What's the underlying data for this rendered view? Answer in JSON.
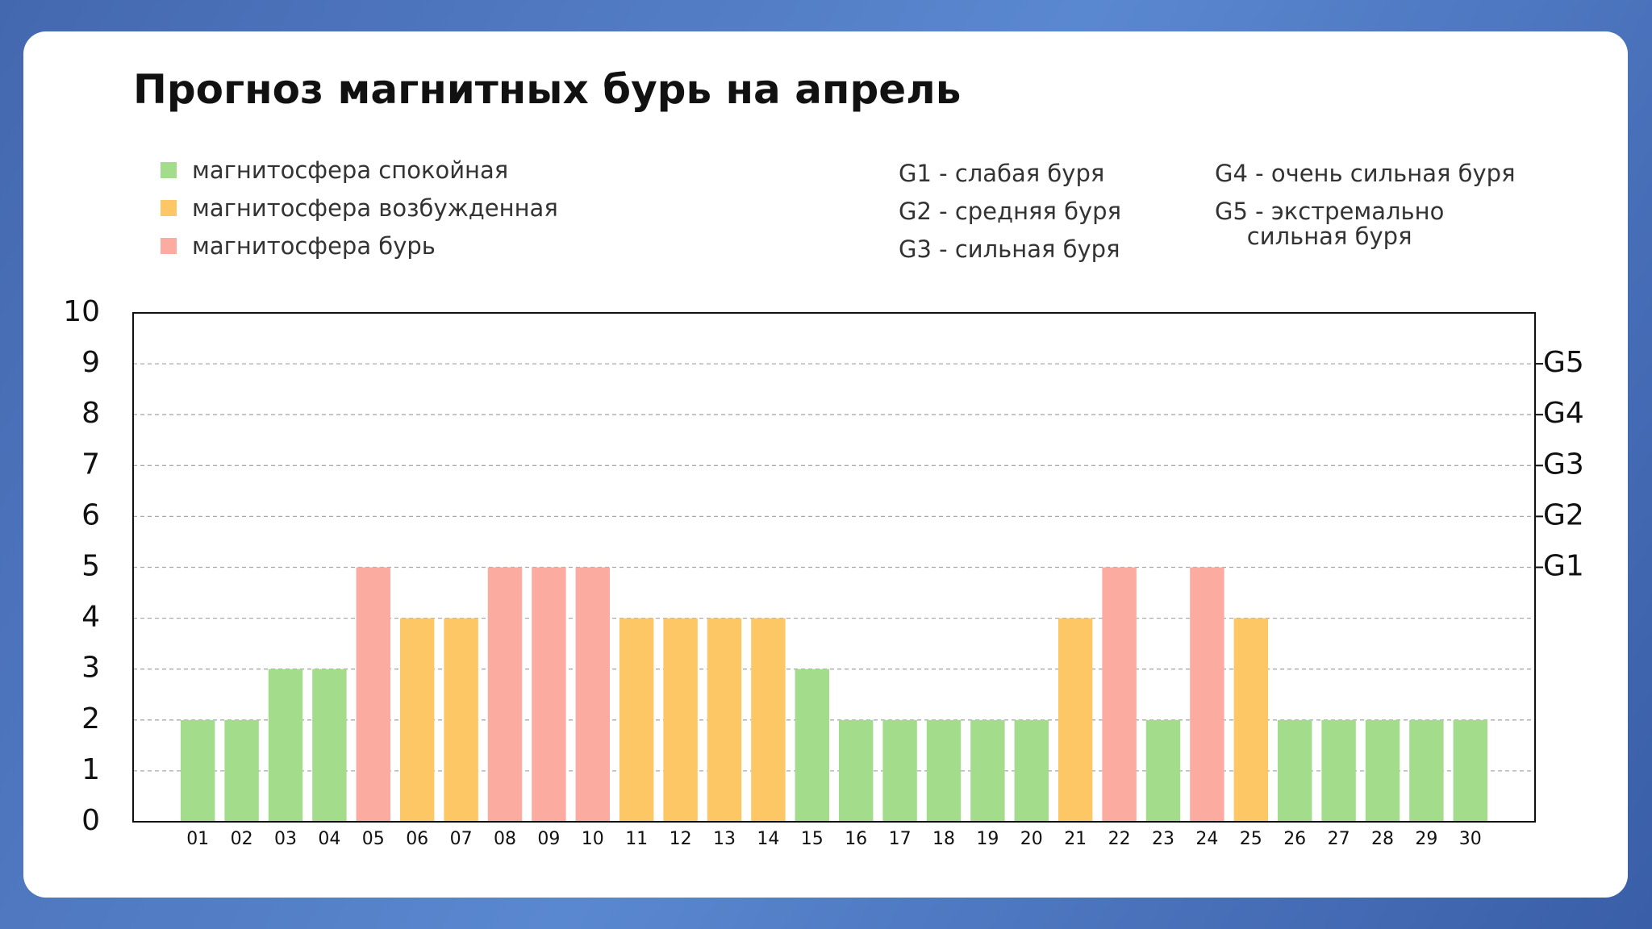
{
  "chart_data": {
    "type": "bar",
    "title": "Прогноз магнитных бурь на апрель",
    "categories": [
      "01",
      "02",
      "03",
      "04",
      "05",
      "06",
      "07",
      "08",
      "09",
      "10",
      "11",
      "12",
      "13",
      "14",
      "15",
      "16",
      "17",
      "18",
      "19",
      "20",
      "21",
      "22",
      "23",
      "24",
      "25",
      "26",
      "27",
      "28",
      "29",
      "30"
    ],
    "series": [
      {
        "name": "магнитосфера спокойная",
        "color": "#a3dd8c",
        "values": [
          2,
          2,
          3,
          3,
          null,
          null,
          null,
          null,
          null,
          null,
          null,
          null,
          null,
          null,
          3,
          2,
          2,
          2,
          2,
          2,
          null,
          null,
          2,
          null,
          null,
          2,
          2,
          2,
          2,
          2
        ]
      },
      {
        "name": "магнитосфера возбужденная",
        "color": "#fdc766",
        "values": [
          null,
          null,
          null,
          null,
          null,
          4,
          4,
          null,
          null,
          null,
          4,
          4,
          4,
          4,
          null,
          null,
          null,
          null,
          null,
          null,
          4,
          null,
          null,
          null,
          4,
          null,
          null,
          null,
          null,
          null
        ]
      },
      {
        "name": "магнитосфера бурь",
        "color": "#fbaba0",
        "values": [
          null,
          null,
          null,
          null,
          5,
          null,
          null,
          5,
          5,
          5,
          null,
          null,
          null,
          null,
          null,
          null,
          null,
          null,
          null,
          null,
          null,
          5,
          null,
          5,
          null,
          null,
          null,
          null,
          null,
          null
        ]
      }
    ],
    "ylim": [
      0,
      10
    ],
    "yticks": [
      0,
      1,
      2,
      3,
      4,
      5,
      6,
      7,
      8,
      9,
      10
    ],
    "y2lim": [
      0,
      10
    ],
    "y2ticks": [
      {
        "value": 9,
        "label": "G5"
      },
      {
        "value": 8,
        "label": "G4"
      },
      {
        "value": 7,
        "label": "G3"
      },
      {
        "value": 6,
        "label": "G2"
      },
      {
        "value": 5,
        "label": "G1"
      }
    ],
    "grid": true,
    "notes": [
      [
        "G1 - слабая буря",
        "G2 - средняя буря",
        "G3 - сильная буря"
      ],
      [
        "G4 - очень сильная буря",
        "G5 - экстремально\nсильная буря"
      ]
    ]
  }
}
